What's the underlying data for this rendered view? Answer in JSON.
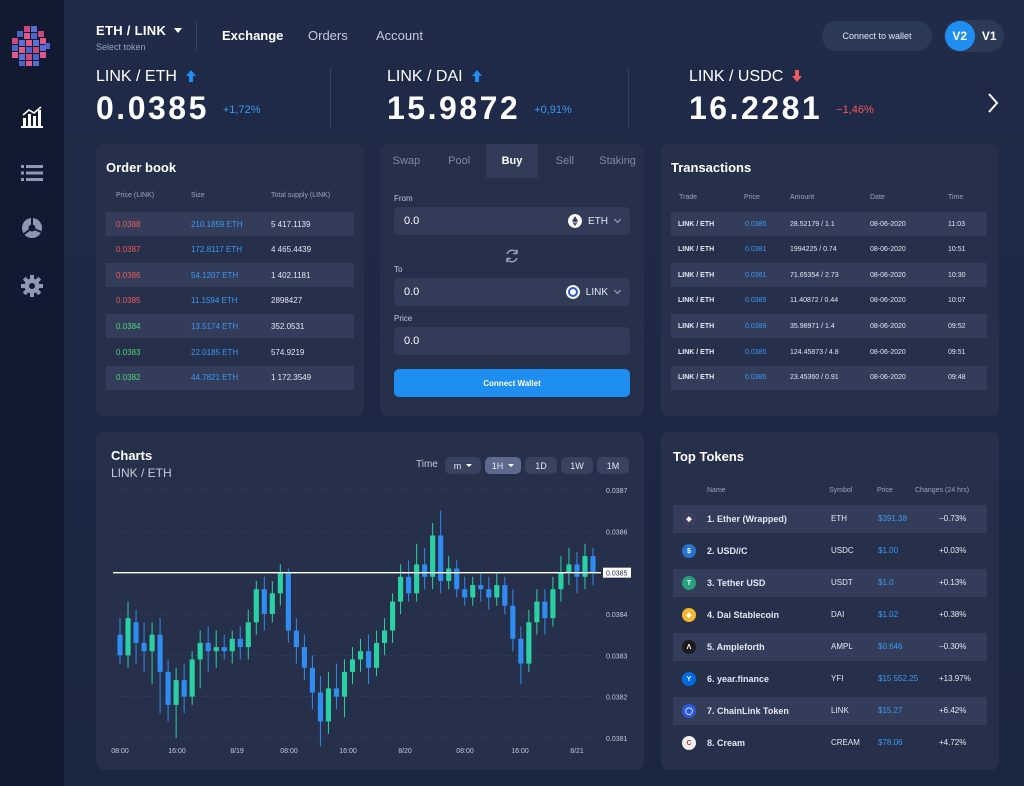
{
  "header": {
    "pair": "ETH / LINK",
    "pair_sub": "Select token",
    "nav": [
      "Exchange",
      "Orders",
      "Account"
    ],
    "connect_wallet": "Connect to wallet",
    "versions": [
      "V2",
      "V1"
    ]
  },
  "tickers": [
    {
      "name": "LINK / ETH",
      "price": "0.0385",
      "change": "+1,72%",
      "direction": "up"
    },
    {
      "name": "LINK / DAI",
      "price": "15.9872",
      "change": "+0,91%",
      "direction": "up"
    },
    {
      "name": "LINK / USDC",
      "price": "16.2281",
      "change": "−1,46%",
      "direction": "down"
    }
  ],
  "orderbook": {
    "title": "Order book",
    "columns": [
      "Price (LINK)",
      "Size",
      "Total supply (LINK)"
    ],
    "rows": [
      {
        "price": "0.0388",
        "size": "210.1859 ETH",
        "total": "5 417.1139",
        "side": "sell"
      },
      {
        "price": "0.0387",
        "size": "172.8117 ETH",
        "total": "4 465.4439",
        "side": "sell"
      },
      {
        "price": "0.0386",
        "size": "54.1207 ETH",
        "total": "1 402.1181",
        "side": "sell"
      },
      {
        "price": "0.0385",
        "size": "11.1594 ETH",
        "total": "2898427",
        "side": "sell"
      },
      {
        "price": "0.0384",
        "size": "13.5174 ETH",
        "total": "352.0531",
        "side": "buy"
      },
      {
        "price": "0.0383",
        "size": "22.0185 ETH",
        "total": "574.9219",
        "side": "buy"
      },
      {
        "price": "0.0382",
        "size": "44.7821 ETH",
        "total": "1 172.3549",
        "side": "buy"
      }
    ]
  },
  "trade": {
    "tabs": [
      "Swap",
      "Pool",
      "Buy",
      "Sell",
      "Staking"
    ],
    "active_tab": "Buy",
    "from_label": "From",
    "from_value": "0.0",
    "from_token": "ETH",
    "to_label": "To",
    "to_value": "0.0",
    "to_token": "LINK",
    "price_label": "Price",
    "price_value": "0.0",
    "connect": "Connect Wallet"
  },
  "transactions": {
    "title": "Transactions",
    "columns": [
      "Trade",
      "Price",
      "Amount",
      "Date",
      "Time"
    ],
    "rows": [
      {
        "trade": "LINK / ETH",
        "price": "0.0385",
        "amount": "28.52179 / 1.1",
        "date": "08-06-2020",
        "time": "11:03"
      },
      {
        "trade": "LINK / ETH",
        "price": "0.0381",
        "amount": "1994225 / 0.74",
        "date": "08-06-2020",
        "time": "10:51"
      },
      {
        "trade": "LINK / ETH",
        "price": "0.0381",
        "amount": "71.65354 / 2.73",
        "date": "08-06-2020",
        "time": "10:30"
      },
      {
        "trade": "LINK / ETH",
        "price": "0.0385",
        "amount": "11.40872 / 0.44",
        "date": "08-06-2020",
        "time": "10:07"
      },
      {
        "trade": "LINK / ETH",
        "price": "0.0389",
        "amount": "35.98971 / 1.4",
        "date": "08-06-2020",
        "time": "09:52"
      },
      {
        "trade": "LINK / ETH",
        "price": "0.0385",
        "amount": "124.45873 / 4.8",
        "date": "08-06-2020",
        "time": "09:51"
      },
      {
        "trade": "LINK / ETH",
        "price": "0.0385",
        "amount": "23.45360 / 0.91",
        "date": "08-06-2020",
        "time": "09:48"
      }
    ]
  },
  "charts": {
    "title": "Charts",
    "subtitle": "LINK / ETH",
    "time_label": "Time",
    "timeframes": [
      "m",
      "1H",
      "1D",
      "1W",
      "1M"
    ],
    "active_timeframe": "1H",
    "current_price": "0.0385"
  },
  "chart_data": {
    "type": "candlestick",
    "title": "Charts",
    "subtitle": "LINK / ETH",
    "x_ticks": [
      "08:00",
      "16:00",
      "8/19",
      "08:00",
      "16:00",
      "8/20",
      "08:00",
      "16:00",
      "8/21"
    ],
    "y_ticks": [
      "0.0387",
      "0.0386",
      "0.0385",
      "0.0384",
      "0.0383",
      "0.0382",
      "0.0381"
    ],
    "ylim": [
      0.0381,
      0.0387
    ],
    "current_price": 0.0385,
    "up_color": "#2ad1a5",
    "down_color": "#2f8cf0",
    "candles": [
      {
        "o": 0.03835,
        "c": 0.0383,
        "h": 0.03839,
        "l": 0.03828
      },
      {
        "o": 0.0383,
        "c": 0.03839,
        "h": 0.03843,
        "l": 0.03827
      },
      {
        "o": 0.03838,
        "c": 0.03833,
        "h": 0.03841,
        "l": 0.03828
      },
      {
        "o": 0.03833,
        "c": 0.03831,
        "h": 0.03838,
        "l": 0.03826
      },
      {
        "o": 0.03831,
        "c": 0.03835,
        "h": 0.03838,
        "l": 0.03823
      },
      {
        "o": 0.03835,
        "c": 0.03826,
        "h": 0.03839,
        "l": 0.03816
      },
      {
        "o": 0.03826,
        "c": 0.03818,
        "h": 0.03829,
        "l": 0.03814
      },
      {
        "o": 0.03818,
        "c": 0.03824,
        "h": 0.03827,
        "l": 0.0381
      },
      {
        "o": 0.03824,
        "c": 0.0382,
        "h": 0.03828,
        "l": 0.03816
      },
      {
        "o": 0.0382,
        "c": 0.03829,
        "h": 0.03831,
        "l": 0.03818
      },
      {
        "o": 0.03829,
        "c": 0.03833,
        "h": 0.03836,
        "l": 0.03822
      },
      {
        "o": 0.03833,
        "c": 0.03831,
        "h": 0.03837,
        "l": 0.03826
      },
      {
        "o": 0.03831,
        "c": 0.03832,
        "h": 0.03836,
        "l": 0.03827
      },
      {
        "o": 0.03832,
        "c": 0.03831,
        "h": 0.03835,
        "l": 0.03829
      },
      {
        "o": 0.03831,
        "c": 0.03834,
        "h": 0.03836,
        "l": 0.03828
      },
      {
        "o": 0.03834,
        "c": 0.03832,
        "h": 0.03837,
        "l": 0.03829
      },
      {
        "o": 0.03832,
        "c": 0.03838,
        "h": 0.03841,
        "l": 0.03829
      },
      {
        "o": 0.03838,
        "c": 0.03846,
        "h": 0.03848,
        "l": 0.03835
      },
      {
        "o": 0.03846,
        "c": 0.0384,
        "h": 0.03849,
        "l": 0.03836
      },
      {
        "o": 0.0384,
        "c": 0.03845,
        "h": 0.03848,
        "l": 0.03838
      },
      {
        "o": 0.03845,
        "c": 0.0385,
        "h": 0.03852,
        "l": 0.03842
      },
      {
        "o": 0.0385,
        "c": 0.03836,
        "h": 0.03851,
        "l": 0.03833
      },
      {
        "o": 0.03836,
        "c": 0.03832,
        "h": 0.03839,
        "l": 0.03828
      },
      {
        "o": 0.03832,
        "c": 0.03827,
        "h": 0.03835,
        "l": 0.03824
      },
      {
        "o": 0.03827,
        "c": 0.03821,
        "h": 0.0383,
        "l": 0.03817
      },
      {
        "o": 0.03821,
        "c": 0.03814,
        "h": 0.03825,
        "l": 0.03808
      },
      {
        "o": 0.03814,
        "c": 0.03822,
        "h": 0.03826,
        "l": 0.03811
      },
      {
        "o": 0.03822,
        "c": 0.0382,
        "h": 0.03828,
        "l": 0.03817
      },
      {
        "o": 0.0382,
        "c": 0.03826,
        "h": 0.03829,
        "l": 0.03815
      },
      {
        "o": 0.03826,
        "c": 0.03829,
        "h": 0.03832,
        "l": 0.03823
      },
      {
        "o": 0.03829,
        "c": 0.03831,
        "h": 0.03834,
        "l": 0.03826
      },
      {
        "o": 0.03831,
        "c": 0.03827,
        "h": 0.03835,
        "l": 0.03823
      },
      {
        "o": 0.03827,
        "c": 0.03833,
        "h": 0.03836,
        "l": 0.03825
      },
      {
        "o": 0.03833,
        "c": 0.03836,
        "h": 0.03839,
        "l": 0.0383
      },
      {
        "o": 0.03836,
        "c": 0.03843,
        "h": 0.03845,
        "l": 0.03833
      },
      {
        "o": 0.03843,
        "c": 0.03849,
        "h": 0.03852,
        "l": 0.0384
      },
      {
        "o": 0.03849,
        "c": 0.03845,
        "h": 0.03853,
        "l": 0.03843
      },
      {
        "o": 0.03845,
        "c": 0.03852,
        "h": 0.03857,
        "l": 0.03843
      },
      {
        "o": 0.03852,
        "c": 0.03849,
        "h": 0.03856,
        "l": 0.03846
      },
      {
        "o": 0.03849,
        "c": 0.03859,
        "h": 0.03862,
        "l": 0.03846
      },
      {
        "o": 0.03859,
        "c": 0.03848,
        "h": 0.03865,
        "l": 0.03845
      },
      {
        "o": 0.03848,
        "c": 0.03851,
        "h": 0.03854,
        "l": 0.03846
      },
      {
        "o": 0.03851,
        "c": 0.03846,
        "h": 0.03853,
        "l": 0.03844
      },
      {
        "o": 0.03846,
        "c": 0.03844,
        "h": 0.03849,
        "l": 0.03842
      },
      {
        "o": 0.03844,
        "c": 0.03847,
        "h": 0.03849,
        "l": 0.03842
      },
      {
        "o": 0.03847,
        "c": 0.03846,
        "h": 0.0385,
        "l": 0.03843
      },
      {
        "o": 0.03846,
        "c": 0.03844,
        "h": 0.03849,
        "l": 0.03841
      },
      {
        "o": 0.03844,
        "c": 0.03847,
        "h": 0.0385,
        "l": 0.03842
      },
      {
        "o": 0.03847,
        "c": 0.03842,
        "h": 0.03849,
        "l": 0.0384
      },
      {
        "o": 0.03842,
        "c": 0.03834,
        "h": 0.03846,
        "l": 0.03831
      },
      {
        "o": 0.03834,
        "c": 0.03828,
        "h": 0.03837,
        "l": 0.03823
      },
      {
        "o": 0.03828,
        "c": 0.03838,
        "h": 0.03841,
        "l": 0.03826
      },
      {
        "o": 0.03838,
        "c": 0.03843,
        "h": 0.03846,
        "l": 0.03835
      },
      {
        "o": 0.03843,
        "c": 0.03839,
        "h": 0.03846,
        "l": 0.03835
      },
      {
        "o": 0.03839,
        "c": 0.03846,
        "h": 0.03849,
        "l": 0.03837
      },
      {
        "o": 0.03846,
        "c": 0.0385,
        "h": 0.03854,
        "l": 0.03843
      },
      {
        "o": 0.0385,
        "c": 0.03852,
        "h": 0.03856,
        "l": 0.03847
      },
      {
        "o": 0.03852,
        "c": 0.03849,
        "h": 0.03855,
        "l": 0.03845
      },
      {
        "o": 0.03849,
        "c": 0.03854,
        "h": 0.03857,
        "l": 0.03846
      },
      {
        "o": 0.03854,
        "c": 0.0385,
        "h": 0.03856,
        "l": 0.03847
      }
    ]
  },
  "top_tokens": {
    "title": "Top Tokens",
    "columns": [
      "Name",
      "Symbol",
      "Price",
      "Changes (24 hrs)"
    ],
    "rows": [
      {
        "name": "1. Ether (Wrapped)",
        "symbol": "ETH",
        "price": "$391.38",
        "change": "−0.73%",
        "icon": "ether-icon",
        "color": "#3c3c5e",
        "glyph": "◆"
      },
      {
        "name": "2. USD//C",
        "symbol": "USDC",
        "price": "$1.00",
        "change": "+0.03%",
        "icon": "usdc-icon",
        "color": "#2775ca",
        "glyph": "$"
      },
      {
        "name": "3. Tether USD",
        "symbol": "USDT",
        "price": "$1.0",
        "change": "+0.13%",
        "icon": "tether-icon",
        "color": "#26a17b",
        "glyph": "T"
      },
      {
        "name": "4. Dai Stablecoin",
        "symbol": "DAI",
        "price": "$1.02",
        "change": "+0.38%",
        "icon": "dai-icon",
        "color": "#f4b731",
        "glyph": "◈"
      },
      {
        "name": "5. Ampleforth",
        "symbol": "AMPL",
        "price": "$0.646",
        "change": "−0.30%",
        "icon": "ampleforth-icon",
        "color": "#1c1c1c",
        "glyph": "Λ"
      },
      {
        "name": "6. year.finance",
        "symbol": "YFI",
        "price": "$15 552.25",
        "change": "+13.97%",
        "icon": "yearn-icon",
        "color": "#006ae3",
        "glyph": "Y"
      },
      {
        "name": "7. ChainLink Token",
        "symbol": "LINK",
        "price": "$15.27",
        "change": "+6.42%",
        "icon": "chainlink-icon",
        "color": "#2a5ada",
        "glyph": "◯"
      },
      {
        "name": "8. Cream",
        "symbol": "CREAM",
        "price": "$78.06",
        "change": "+4.72%",
        "icon": "cream-icon",
        "color": "#f0f0f0",
        "glyph": "C"
      }
    ]
  },
  "colors": {
    "accent": "#1e8ef0",
    "up": "#2ad1a5",
    "down": "#f05a5a",
    "card": "#27304a",
    "background": "#1c2742"
  }
}
